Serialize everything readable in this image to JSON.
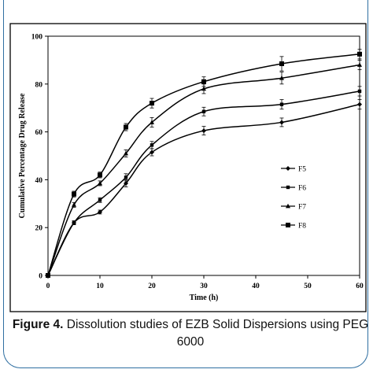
{
  "caption": {
    "label": "Figure 4.",
    "text": "Dissolution studies of EZB Solid Dispersions using PEG 6000"
  },
  "chart_data": {
    "type": "line",
    "title": "",
    "xlabel": "Time (h)",
    "ylabel": "Cumulative Percentage Drug Release",
    "xlim": [
      0,
      60
    ],
    "ylim": [
      0,
      100
    ],
    "x_ticks": [
      0,
      10,
      20,
      30,
      40,
      50,
      60
    ],
    "y_ticks": [
      0,
      20,
      40,
      60,
      80,
      100
    ],
    "grid": false,
    "legend_position": "right",
    "x": [
      0,
      5,
      10,
      15,
      20,
      30,
      45,
      60
    ],
    "series": [
      {
        "name": "F5",
        "marker": "diamond",
        "values": [
          0,
          22,
          26.5,
          38.5,
          51.5,
          60.5,
          64,
          71.5
        ],
        "errors": [
          0,
          0.8,
          0.8,
          1.5,
          1.5,
          1.8,
          1.8,
          2
        ]
      },
      {
        "name": "F6",
        "marker": "square-small",
        "values": [
          0,
          22,
          31.5,
          41,
          54.5,
          68.5,
          71.5,
          77
        ],
        "errors": [
          0,
          0.8,
          1,
          1.5,
          1.5,
          1.8,
          2,
          2
        ]
      },
      {
        "name": "F7",
        "marker": "triangle",
        "values": [
          0,
          29.5,
          38.5,
          51,
          64,
          78,
          82.5,
          88
        ],
        "errors": [
          0,
          1,
          1,
          1.5,
          2,
          2,
          2.5,
          2
        ]
      },
      {
        "name": "F8",
        "marker": "square",
        "values": [
          0,
          34,
          42,
          62,
          72,
          81,
          88.5,
          92.5
        ],
        "errors": [
          0,
          1.2,
          1.2,
          1.5,
          2,
          2,
          3,
          2
        ]
      }
    ]
  }
}
